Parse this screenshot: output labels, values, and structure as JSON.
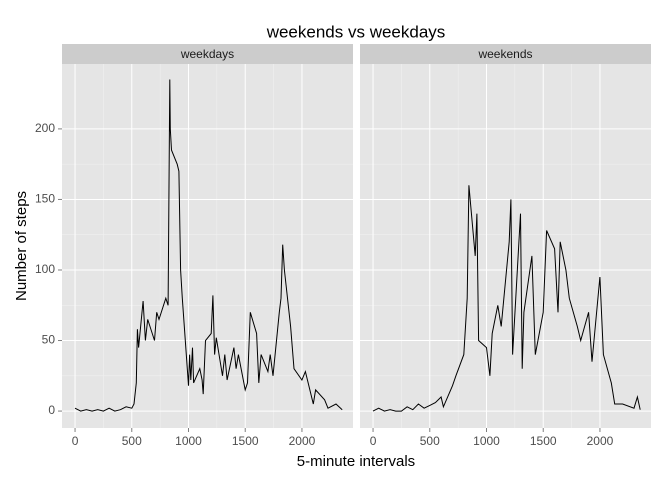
{
  "title": "weekends vs weekdays",
  "x_label": "5-minute intervals",
  "y_label": "Number of steps",
  "chart_data": [
    {
      "type": "line",
      "panel": "weekdays",
      "color": "#000000",
      "grid": true,
      "xlim": [
        -115,
        2450
      ],
      "ylim": [
        -12,
        246
      ],
      "xticks": [
        0,
        500,
        1000,
        1500,
        2000
      ],
      "yticks": [
        0,
        50,
        100,
        150,
        200
      ],
      "x": [
        0,
        50,
        100,
        150,
        200,
        250,
        300,
        350,
        400,
        450,
        500,
        520,
        540,
        550,
        560,
        600,
        620,
        640,
        700,
        720,
        740,
        800,
        820,
        835,
        840,
        850,
        900,
        915,
        930,
        945,
        1000,
        1010,
        1020,
        1035,
        1045,
        1100,
        1120,
        1130,
        1150,
        1200,
        1215,
        1230,
        1245,
        1300,
        1320,
        1340,
        1400,
        1420,
        1440,
        1500,
        1520,
        1545,
        1600,
        1620,
        1640,
        1700,
        1720,
        1745,
        1800,
        1815,
        1830,
        1845,
        1900,
        1930,
        2000,
        2030,
        2100,
        2120,
        2200,
        2230,
        2300,
        2355
      ],
      "values": [
        2,
        0,
        1,
        0,
        1,
        0,
        2,
        0,
        1,
        3,
        2,
        5,
        20,
        58,
        45,
        78,
        50,
        65,
        50,
        70,
        65,
        80,
        75,
        235,
        200,
        185,
        175,
        170,
        100,
        80,
        18,
        40,
        22,
        45,
        20,
        30,
        22,
        12,
        50,
        55,
        82,
        40,
        52,
        25,
        40,
        22,
        45,
        30,
        40,
        15,
        20,
        70,
        55,
        20,
        40,
        28,
        40,
        25,
        70,
        80,
        118,
        100,
        60,
        30,
        22,
        28,
        5,
        15,
        8,
        2,
        5,
        1
      ]
    },
    {
      "type": "line",
      "panel": "weekends",
      "color": "#000000",
      "grid": true,
      "xlim": [
        -115,
        2450
      ],
      "ylim": [
        -12,
        246
      ],
      "xticks": [
        0,
        500,
        1000,
        1500,
        2000
      ],
      "yticks": [
        0,
        50,
        100,
        150,
        200
      ],
      "x": [
        0,
        50,
        100,
        150,
        200,
        250,
        300,
        350,
        400,
        450,
        500,
        550,
        600,
        620,
        700,
        730,
        800,
        830,
        845,
        900,
        915,
        930,
        1000,
        1030,
        1050,
        1100,
        1130,
        1200,
        1215,
        1230,
        1300,
        1315,
        1330,
        1400,
        1430,
        1500,
        1530,
        1600,
        1630,
        1650,
        1700,
        1730,
        1800,
        1830,
        1900,
        1930,
        2000,
        2030,
        2100,
        2130,
        2200,
        2300,
        2330,
        2355
      ],
      "values": [
        0,
        2,
        0,
        1,
        0,
        0,
        3,
        1,
        5,
        2,
        4,
        6,
        10,
        3,
        18,
        25,
        40,
        80,
        160,
        110,
        140,
        50,
        45,
        25,
        55,
        75,
        60,
        120,
        150,
        40,
        140,
        30,
        70,
        110,
        40,
        70,
        128,
        115,
        70,
        120,
        100,
        80,
        60,
        50,
        70,
        35,
        95,
        40,
        20,
        5,
        5,
        2,
        10,
        1
      ]
    }
  ]
}
